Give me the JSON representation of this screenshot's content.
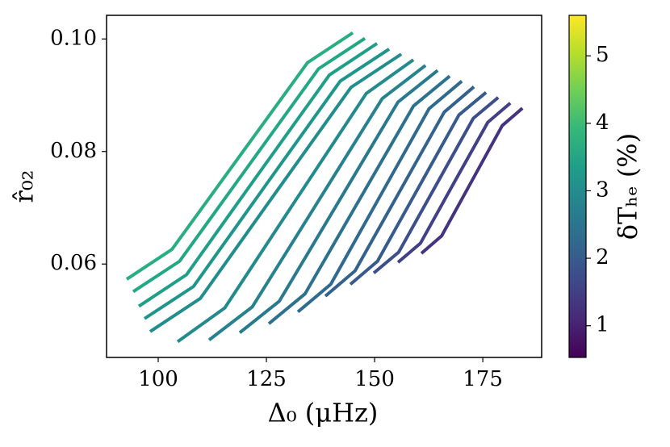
{
  "chart_data": {
    "type": "line",
    "xlabel": "Δ₀  (μHz)",
    "ylabel": "r̂₀₂",
    "xlim": [
      88.06,
      188.6
    ],
    "ylim": [
      0.0434,
      0.1042
    ],
    "xticks": [
      100,
      125,
      150,
      175
    ],
    "yticks": [
      0.06,
      0.08,
      {
        "value": 0.1,
        "label": "0.10"
      }
    ],
    "series": [
      {
        "color": "#28ae80",
        "x": [
          92.72,
          103.17,
          118.84,
          134.51,
          144.96
        ],
        "values": [
          0.0573,
          0.0626,
          0.0792,
          0.0958,
          0.1011
        ]
      },
      {
        "color": "#22a884",
        "x": [
          94.22,
          104.93,
          120.99,
          137.05,
          147.76
        ],
        "values": [
          0.0551,
          0.0605,
          0.0776,
          0.0947,
          0.1001
        ]
      },
      {
        "color": "#1f9f88",
        "x": [
          95.52,
          106.53,
          123.04,
          139.55,
          150.56
        ],
        "values": [
          0.0525,
          0.0581,
          0.0759,
          0.0936,
          0.0992
        ]
      },
      {
        "color": "#1f968b",
        "x": [
          96.83,
          108.14,
          125.1,
          142.05,
          153.36
        ],
        "values": [
          0.0503,
          0.056,
          0.0743,
          0.0925,
          0.0982
        ]
      },
      {
        "color": "#218e8d",
        "x": [
          98.13,
          109.74,
          127.15,
          144.55,
          156.16
        ],
        "values": [
          0.048,
          0.0539,
          0.0727,
          0.0914,
          0.0973
        ]
      },
      {
        "color": "#238a8d",
        "x": [
          104.48,
          115.38,
          131.72,
          148.06,
          158.96
        ],
        "values": [
          0.0462,
          0.0522,
          0.0713,
          0.0903,
          0.0963
        ]
      },
      {
        "color": "#26828e",
        "x": [
          111.75,
          121.75,
          136.76,
          151.76,
          161.76
        ],
        "values": [
          0.0465,
          0.0524,
          0.0709,
          0.0894,
          0.0953
        ]
      },
      {
        "color": "#297a8e",
        "x": [
          118.84,
          127.98,
          141.7,
          155.42,
          164.56
        ],
        "values": [
          0.0478,
          0.0534,
          0.0711,
          0.0888,
          0.0944
        ]
      },
      {
        "color": "#2c728e",
        "x": [
          125.56,
          133.92,
          146.46,
          159.0,
          167.36
        ],
        "values": [
          0.0494,
          0.0547,
          0.0714,
          0.0881,
          0.0934
        ]
      },
      {
        "color": "#306a8e",
        "x": [
          132.28,
          139.86,
          151.22,
          162.58,
          170.16
        ],
        "values": [
          0.0515,
          0.0564,
          0.072,
          0.0876,
          0.0925
        ]
      },
      {
        "color": "#33638d",
        "x": [
          138.62,
          145.49,
          155.79,
          166.09,
          172.96
        ],
        "values": [
          0.0543,
          0.0588,
          0.0729,
          0.087,
          0.0915
        ]
      },
      {
        "color": "#375b8d",
        "x": [
          144.4,
          150.67,
          160.08,
          169.49,
          175.76
        ],
        "values": [
          0.0564,
          0.0605,
          0.0735,
          0.0865,
          0.0905
        ]
      },
      {
        "color": "#3c4f8a",
        "x": [
          149.81,
          155.56,
          164.19,
          172.81,
          178.56
        ],
        "values": [
          0.0584,
          0.0621,
          0.074,
          0.0859,
          0.0896
        ]
      },
      {
        "color": "#424086",
        "x": [
          155.41,
          160.6,
          168.39,
          176.17,
          181.36
        ],
        "values": [
          0.0603,
          0.0637,
          0.0745,
          0.0852,
          0.0886
        ]
      },
      {
        "color": "#46337f",
        "x": [
          160.82,
          165.49,
          172.49,
          179.49,
          184.16
        ],
        "values": [
          0.0619,
          0.065,
          0.0748,
          0.0846,
          0.0877
        ]
      }
    ],
    "colorbar": {
      "label": "δTₕₑ (%)",
      "lim": [
        0.53,
        5.6
      ],
      "ticks": [
        1,
        2,
        3,
        4,
        5
      ],
      "colors": [
        "#440154",
        "#482878",
        "#3e4989",
        "#31688e",
        "#26828e",
        "#1f9e89",
        "#35b779",
        "#6ece58",
        "#b5de2b",
        "#fde725"
      ]
    }
  }
}
